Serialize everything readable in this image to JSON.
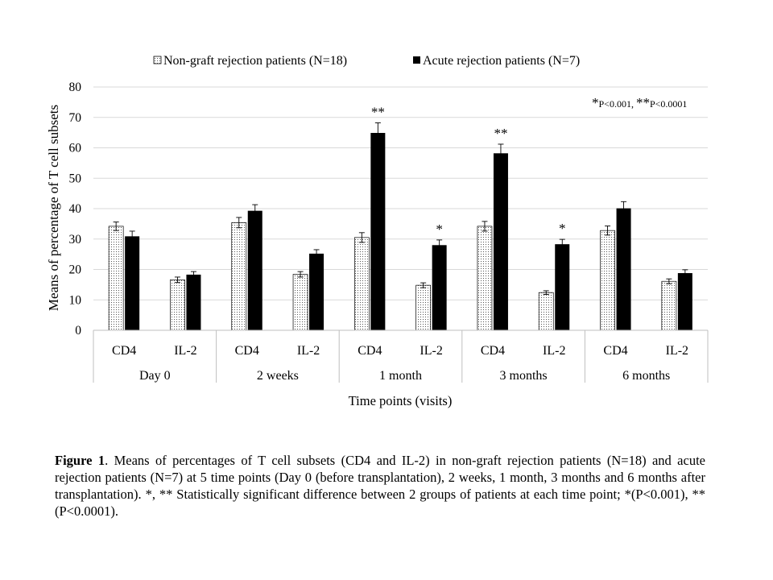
{
  "chart_data": {
    "type": "bar",
    "title": "",
    "xlabel": "Time points (visits)",
    "ylabel": "Means of percentage of T cell subsets",
    "ylim": [
      0,
      80
    ],
    "yticks": [
      "0",
      "10",
      "20",
      "30",
      "40",
      "50",
      "60",
      "70",
      "80"
    ],
    "grid": true,
    "legend_position": "top",
    "groups": [
      "Day 0",
      "2 weeks",
      "1 month",
      "3 months",
      "6 months"
    ],
    "subcategories": [
      "CD4",
      "IL-2"
    ],
    "series": [
      {
        "name": "Non-graft rejection patients (N=18)",
        "pattern": "dotted",
        "color": "#ffffff",
        "values": [
          [
            34.2,
            16.6
          ],
          [
            35.4,
            18.4
          ],
          [
            30.5,
            14.8
          ],
          [
            34.2,
            12.4
          ],
          [
            32.8,
            16.1
          ]
        ],
        "errors": [
          [
            1.4,
            0.9
          ],
          [
            1.7,
            0.9
          ],
          [
            1.6,
            0.8
          ],
          [
            1.6,
            0.6
          ],
          [
            1.5,
            0.8
          ]
        ],
        "annotations": [
          [
            "",
            ""
          ],
          [
            "",
            ""
          ],
          [
            "",
            ""
          ],
          [
            "",
            ""
          ],
          [
            "",
            ""
          ]
        ]
      },
      {
        "name": "Acute rejection patients (N=7)",
        "pattern": "solid",
        "color": "#000000",
        "values": [
          [
            30.9,
            18.3
          ],
          [
            39.3,
            25.2
          ],
          [
            64.9,
            28.0
          ],
          [
            58.2,
            28.3
          ],
          [
            40.1,
            18.8
          ]
        ],
        "errors": [
          [
            1.7,
            1.0
          ],
          [
            2.0,
            1.3
          ],
          [
            3.3,
            1.7
          ],
          [
            3.0,
            1.6
          ],
          [
            2.2,
            1.1
          ]
        ],
        "annotations": [
          [
            "",
            ""
          ],
          [
            "",
            ""
          ],
          [
            "**",
            "*"
          ],
          [
            "**",
            "*"
          ],
          [
            "",
            ""
          ]
        ]
      }
    ],
    "significance_note": {
      "star1": "*",
      "text1": "P<0.001, ",
      "star2": "**",
      "text2": "P<0.0001"
    }
  },
  "caption": {
    "label": "Figure 1",
    "text": ". Means of percentages of T cell subsets (CD4 and IL-2) in non-graft rejection patients (N=18) and acute rejection patients (N=7) at 5 time points (Day 0 (before transplantation), 2 weeks, 1 month, 3 months and 6 months after transplantation). *, ** Statistically significant difference between 2 groups of patients at each time point; *(P<0.001), **(P<0.0001)."
  }
}
